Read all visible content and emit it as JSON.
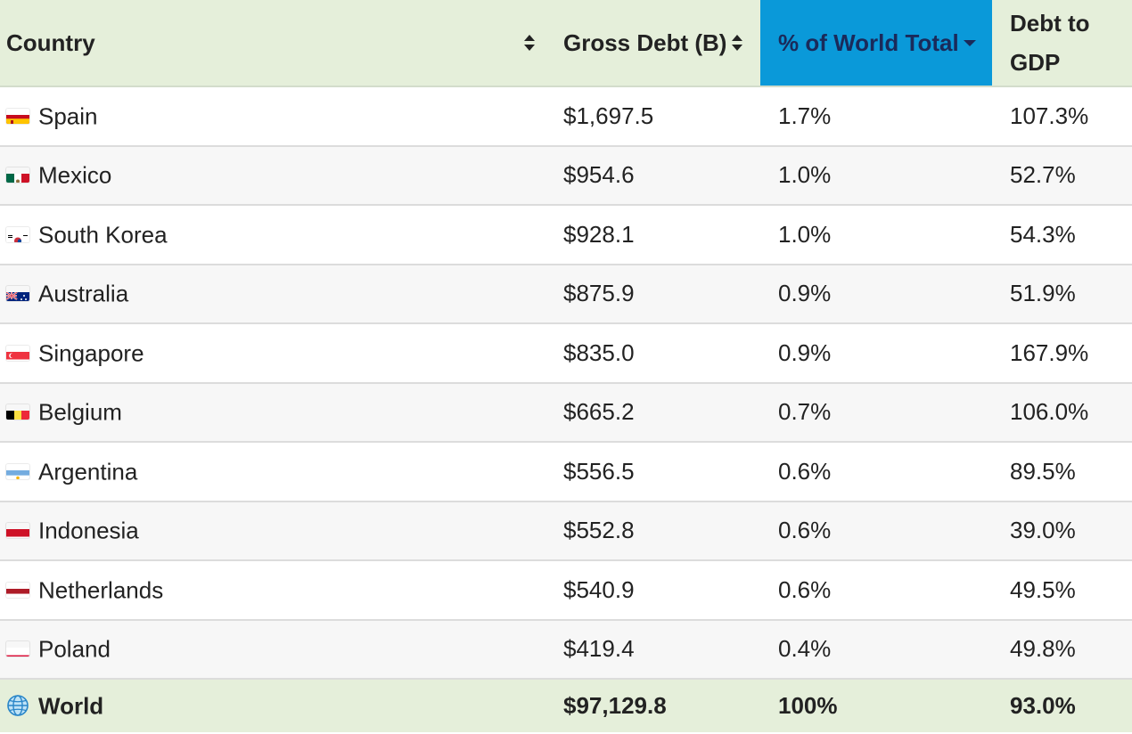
{
  "columns": {
    "country": "Country",
    "gross_debt": "Gross Debt (B)",
    "pct_world": "% of World Total",
    "debt_gdp_line1": "Debt to",
    "debt_gdp_line2": "GDP"
  },
  "rows": [
    {
      "flag": "spain-flag-icon",
      "country": "Spain",
      "gross": "$1,697.5",
      "pct": "1.7%",
      "gdp": "107.3%"
    },
    {
      "flag": "mexico-flag-icon",
      "country": "Mexico",
      "gross": "$954.6",
      "pct": "1.0%",
      "gdp": "52.7%"
    },
    {
      "flag": "south-korea-flag-icon",
      "country": "South Korea",
      "gross": "$928.1",
      "pct": "1.0%",
      "gdp": "54.3%"
    },
    {
      "flag": "australia-flag-icon",
      "country": "Australia",
      "gross": "$875.9",
      "pct": "0.9%",
      "gdp": "51.9%"
    },
    {
      "flag": "singapore-flag-icon",
      "country": "Singapore",
      "gross": "$835.0",
      "pct": "0.9%",
      "gdp": "167.9%"
    },
    {
      "flag": "belgium-flag-icon",
      "country": "Belgium",
      "gross": "$665.2",
      "pct": "0.7%",
      "gdp": "106.0%"
    },
    {
      "flag": "argentina-flag-icon",
      "country": "Argentina",
      "gross": "$556.5",
      "pct": "0.6%",
      "gdp": "89.5%"
    },
    {
      "flag": "indonesia-flag-icon",
      "country": "Indonesia",
      "gross": "$552.8",
      "pct": "0.6%",
      "gdp": "39.0%"
    },
    {
      "flag": "netherlands-flag-icon",
      "country": "Netherlands",
      "gross": "$540.9",
      "pct": "0.6%",
      "gdp": "49.5%"
    },
    {
      "flag": "poland-flag-icon",
      "country": "Poland",
      "gross": "$419.4",
      "pct": "0.4%",
      "gdp": "49.8%"
    }
  ],
  "total": {
    "icon": "globe-icon",
    "country": "World",
    "gross": "$97,129.8",
    "pct": "100%",
    "gdp": "93.0%"
  },
  "colors": {
    "header_bg": "#e5efda",
    "sorted_header_bg": "#0a99d9",
    "total_bg": "#e5efda"
  },
  "sort": {
    "column": "pct_world",
    "direction": "descending"
  }
}
